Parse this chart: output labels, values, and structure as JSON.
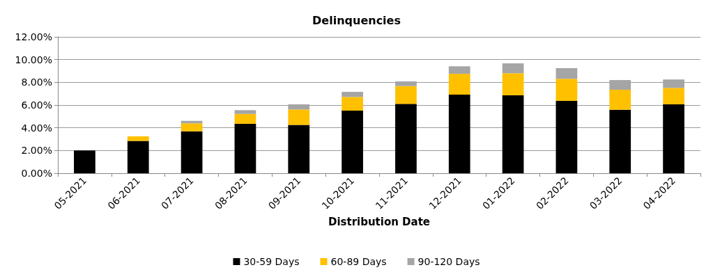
{
  "chart_data": {
    "type": "bar",
    "title": "Delinquencies",
    "xlabel": "Distribution Date",
    "stacked": true,
    "grid": "y",
    "legend": "bottom",
    "categories": [
      "05-2021",
      "06-2021",
      "07-2021",
      "08-2021",
      "09-2021",
      "10-2021",
      "11-2021",
      "12-2021",
      "01-2022",
      "02-2022",
      "03-2022",
      "04-2022"
    ],
    "ylim": [
      0,
      12
    ],
    "yticks": [
      {
        "value": 0,
        "label": "0.00%"
      },
      {
        "value": 2,
        "label": "2.00%"
      },
      {
        "value": 4,
        "label": "4.00%"
      },
      {
        "value": 6,
        "label": "6.00%"
      },
      {
        "value": 8,
        "label": "8.00%"
      },
      {
        "value": 10,
        "label": "10.00%"
      },
      {
        "value": 12,
        "label": "12.00%"
      }
    ],
    "series": [
      {
        "name": "30-59 Days",
        "color": "#000000",
        "values": [
          2.0,
          2.84,
          3.69,
          4.35,
          4.25,
          5.51,
          6.1,
          6.92,
          6.86,
          6.37,
          5.59,
          6.06
        ]
      },
      {
        "name": "60-89 Days",
        "color": "#ffc000",
        "values": [
          0,
          0.41,
          0.7,
          0.87,
          1.36,
          1.2,
          1.57,
          1.83,
          1.94,
          1.94,
          1.76,
          1.45
        ]
      },
      {
        "name": "90-120 Days",
        "color": "#a5a5a5",
        "values": [
          0,
          null,
          0.22,
          0.33,
          0.45,
          0.45,
          0.41,
          0.66,
          0.87,
          0.94,
          0.85,
          0.74
        ]
      }
    ]
  }
}
